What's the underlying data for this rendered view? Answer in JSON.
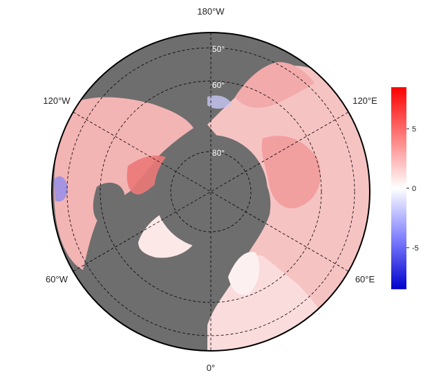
{
  "map": {
    "projection": "north-polar-stereographic",
    "ocean_color": "#6e6e6e",
    "land_mask_color": "#6e6e6e",
    "frame_color": "#000000",
    "longitude_labels": [
      {
        "id": "lon-180",
        "text": "180°W"
      },
      {
        "id": "lon-120w",
        "text": "120°W"
      },
      {
        "id": "lon-120e",
        "text": "120°E"
      },
      {
        "id": "lon-60w",
        "text": "60°W"
      },
      {
        "id": "lon-60e",
        "text": "60°E"
      },
      {
        "id": "lon-0",
        "text": "0°"
      }
    ],
    "latitude_labels": [
      {
        "id": "lat-50",
        "text": "50°"
      },
      {
        "id": "lat-60",
        "text": "60°"
      },
      {
        "id": "lat-80",
        "text": "80°"
      }
    ]
  },
  "colorbar": {
    "colormap": "bwr",
    "min_color": "#0000cc",
    "mid_color": "#ffffff",
    "max_color": "#ff0000",
    "range": [
      -8.5,
      8.5
    ],
    "ticks": [
      {
        "value": 5,
        "text": "5"
      },
      {
        "value": 0,
        "text": "0"
      },
      {
        "value": -5,
        "text": "-5"
      }
    ]
  }
}
